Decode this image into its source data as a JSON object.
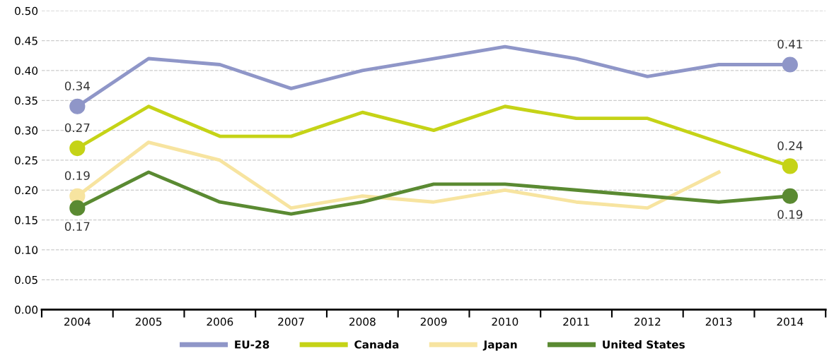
{
  "chart_data": {
    "type": "line",
    "categories": [
      "2004",
      "2005",
      "2006",
      "2007",
      "2008",
      "2009",
      "2010",
      "2011",
      "2012",
      "2013",
      "2014"
    ],
    "series": [
      {
        "name": "EU-28",
        "color": "#8f96c8",
        "values": [
          0.34,
          0.42,
          0.41,
          0.37,
          0.4,
          0.42,
          0.44,
          0.42,
          0.39,
          0.41,
          0.41
        ],
        "value_labels": [
          "0.34",
          null,
          null,
          null,
          null,
          null,
          null,
          null,
          null,
          null,
          "0.41"
        ]
      },
      {
        "name": "Canada",
        "color": "#c5d317",
        "values": [
          0.27,
          0.34,
          0.29,
          0.29,
          0.33,
          0.3,
          0.34,
          0.32,
          0.32,
          0.28,
          0.24
        ],
        "value_labels": [
          "0.27",
          null,
          null,
          null,
          null,
          null,
          null,
          null,
          null,
          null,
          "0.24"
        ]
      },
      {
        "name": "Japan",
        "color": "#f7e4a0",
        "values": [
          0.19,
          0.28,
          0.25,
          0.17,
          0.19,
          0.18,
          0.2,
          0.18,
          0.17,
          0.23,
          null
        ],
        "value_labels": [
          "0.19",
          null,
          null,
          null,
          null,
          null,
          null,
          null,
          null,
          null,
          null
        ]
      },
      {
        "name": "United States",
        "color": "#5a8a32",
        "values": [
          0.17,
          0.23,
          0.18,
          0.16,
          0.18,
          0.21,
          0.21,
          0.2,
          0.19,
          0.18,
          0.19
        ],
        "value_labels": [
          "0.17",
          null,
          null,
          null,
          null,
          null,
          null,
          null,
          null,
          null,
          "0.19"
        ]
      }
    ],
    "ylim": [
      0,
      0.5
    ],
    "yticks": [
      {
        "value": 0,
        "label": "0.00"
      },
      {
        "value": 0.05,
        "label": "0.05"
      },
      {
        "value": 0.1,
        "label": "0.10"
      },
      {
        "value": 0.15,
        "label": "0.15"
      },
      {
        "value": 0.2,
        "label": "0.20"
      },
      {
        "value": 0.25,
        "label": "0.25"
      },
      {
        "value": 0.3,
        "label": "0.30"
      },
      {
        "value": 0.35,
        "label": "0.35"
      },
      {
        "value": 0.4,
        "label": "0.40"
      },
      {
        "value": 0.45,
        "label": "0.45"
      },
      {
        "value": 0.5,
        "label": "0.50"
      }
    ],
    "grid": "y",
    "legend": "bottom",
    "line_style": "solid"
  }
}
